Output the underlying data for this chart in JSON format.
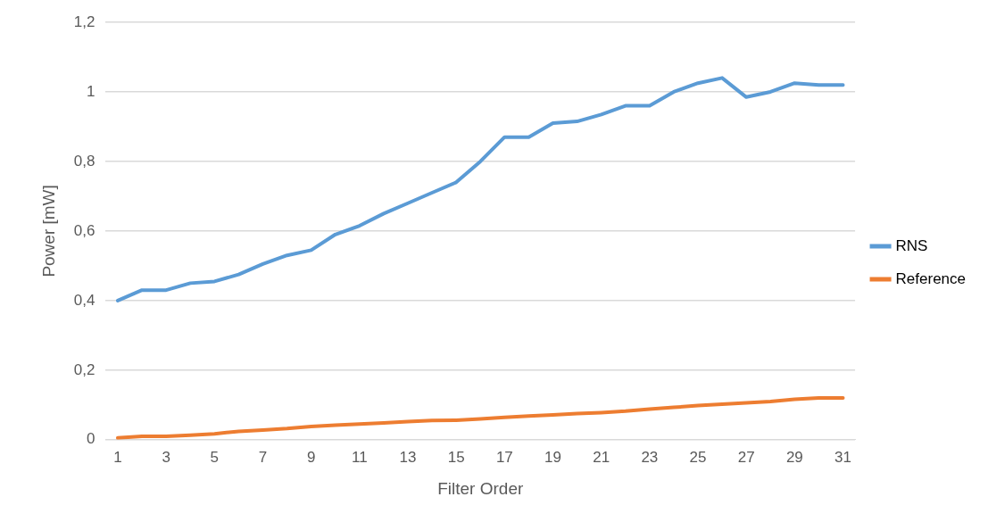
{
  "chart_data": {
    "type": "line",
    "xlabel": "Filter Order",
    "ylabel": "Power [mW]",
    "x": [
      1,
      2,
      3,
      4,
      5,
      6,
      7,
      8,
      9,
      10,
      11,
      12,
      13,
      14,
      15,
      16,
      17,
      18,
      19,
      20,
      21,
      22,
      23,
      24,
      25,
      26,
      27,
      28,
      29,
      30,
      31
    ],
    "xlim": [
      0.5,
      31.5
    ],
    "xticks": [
      1,
      3,
      5,
      7,
      9,
      11,
      13,
      15,
      17,
      19,
      21,
      23,
      25,
      27,
      29,
      31
    ],
    "series": [
      {
        "name": "RNS",
        "color": "#5b9bd5",
        "values": [
          0.4,
          0.43,
          0.43,
          0.45,
          0.455,
          0.475,
          0.505,
          0.53,
          0.545,
          0.59,
          0.615,
          0.65,
          0.68,
          0.71,
          0.74,
          0.8,
          0.87,
          0.87,
          0.91,
          0.915,
          0.935,
          0.96,
          0.96,
          1.0,
          1.025,
          1.04,
          0.985,
          1.0,
          1.025,
          1.02,
          1.02
        ]
      },
      {
        "name": "Reference",
        "color": "#ed7d31",
        "values": [
          0.005,
          0.01,
          0.01,
          0.013,
          0.017,
          0.024,
          0.028,
          0.032,
          0.038,
          0.042,
          0.045,
          0.048,
          0.052,
          0.055,
          0.056,
          0.06,
          0.064,
          0.068,
          0.071,
          0.075,
          0.078,
          0.082,
          0.088,
          0.093,
          0.098,
          0.102,
          0.106,
          0.11,
          0.116,
          0.12,
          0.12
        ]
      }
    ],
    "ylim": [
      0,
      1.2
    ],
    "yticks": [
      0,
      {
        "value": 0.2,
        "label": "0,2"
      },
      {
        "value": 0.4,
        "label": "0,4"
      },
      {
        "value": 0.6,
        "label": "0,6"
      },
      {
        "value": 0.8,
        "label": "0,8"
      },
      1,
      {
        "value": 1.2,
        "label": "1,2"
      }
    ],
    "grid": "y",
    "legend": "right",
    "marker": "none",
    "line_style": "solid"
  }
}
